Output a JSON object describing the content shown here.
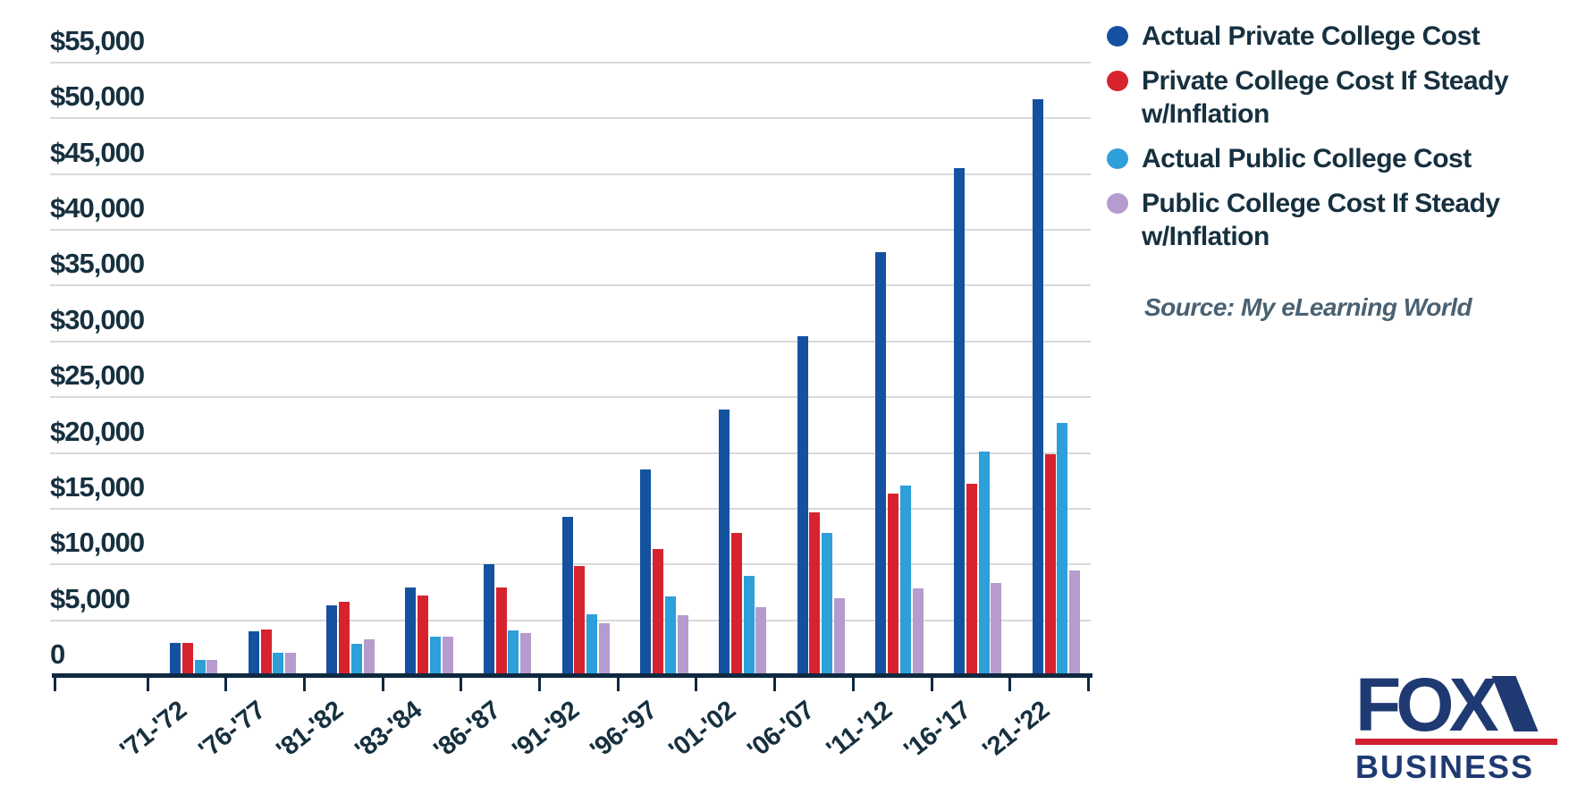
{
  "chart_data": {
    "type": "bar",
    "title": "",
    "categories": [
      "'71-'72",
      "'76-'77",
      "'81-'82",
      "'83-'84",
      "'86-'87",
      "'91-'92",
      "'96-'97",
      "'01-'02",
      "'06-'07",
      "'11-'12",
      "'16-'17",
      "'21-'22"
    ],
    "series": [
      {
        "name": "Actual Private College Cost",
        "color": "#1452a0",
        "values": [
          2930,
          4000,
          6350,
          7900,
          10000,
          14300,
          18500,
          23900,
          30500,
          38000,
          45500,
          51750
        ]
      },
      {
        "name": "Private College Cost If Steady w/Inflation",
        "color": "#d7232e",
        "values": [
          2930,
          4200,
          6650,
          7250,
          7950,
          9900,
          11400,
          12850,
          14700,
          16350,
          17250,
          19900
        ]
      },
      {
        "name": "Actual Public College Cost",
        "color": "#2d9fd9",
        "values": [
          1410,
          2050,
          2900,
          3500,
          4050,
          5500,
          7150,
          8950,
          12850,
          17100,
          20100,
          22650
        ]
      },
      {
        "name": "Public College Cost If Steady w/Inflation",
        "color": "#b59bce",
        "values": [
          1410,
          2100,
          3250,
          3550,
          3850,
          4750,
          5450,
          6200,
          6950,
          7850,
          8300,
          9500
        ]
      }
    ],
    "y_axis": {
      "min": 0,
      "max": 55000,
      "step": 5000,
      "tick_labels": [
        "0",
        "$5,000",
        "$10,000",
        "$15,000",
        "$20,000",
        "$25,000",
        "$30,000",
        "$35,000",
        "$40,000",
        "$45,000",
        "$50,000",
        "$55,000"
      ]
    },
    "grid": true,
    "legend_position": "top-right"
  },
  "source_note": "Source: My eLearning World",
  "branding": {
    "line1": "FOX",
    "line2": "BUSINESS"
  },
  "colors": {
    "background": "#ffffff",
    "grid": "#d9d9d9",
    "axis": "#0e2940",
    "label_text": "#16303f",
    "source_text": "#4a6172",
    "fox_navy": "#1f3a72",
    "fox_red": "#cf2130"
  }
}
